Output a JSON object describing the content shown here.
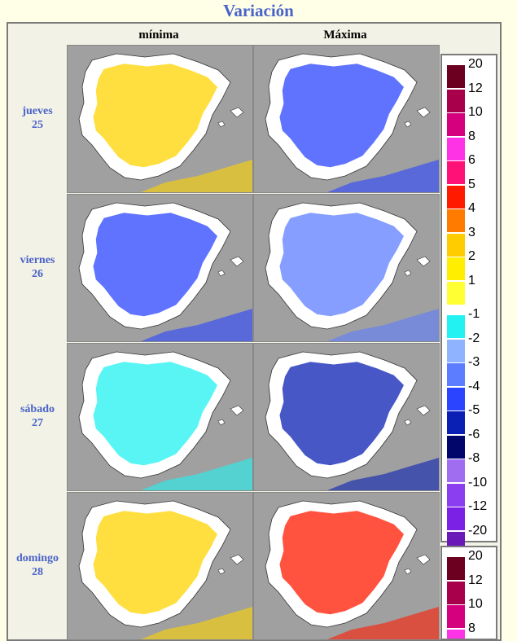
{
  "title": "Variación",
  "columns": [
    "mínima",
    "Máxima"
  ],
  "rows": [
    {
      "day": "jueves",
      "date": "25"
    },
    {
      "day": "viernes",
      "date": "26"
    },
    {
      "day": "sábado",
      "date": "27"
    },
    {
      "day": "domingo",
      "date": "28"
    }
  ],
  "legend": {
    "positive": [
      {
        "label": "20",
        "color": "#6b0020"
      },
      {
        "label": "12",
        "color": "#a8004a"
      },
      {
        "label": "10",
        "color": "#d4007e"
      },
      {
        "label": "8",
        "color": "#ff33e6"
      },
      {
        "label": "6",
        "color": "#ff1177"
      },
      {
        "label": "5",
        "color": "#ff1a00"
      },
      {
        "label": "4",
        "color": "#ff7b00"
      },
      {
        "label": "3",
        "color": "#ffcc00"
      },
      {
        "label": "2",
        "color": "#ffee00"
      },
      {
        "label": "1",
        "color": "#ffff33"
      }
    ],
    "negative": [
      {
        "label": "-1",
        "color": "#22f2f2"
      },
      {
        "label": "-2",
        "color": "#8fb3ff"
      },
      {
        "label": "-3",
        "color": "#5c7dff"
      },
      {
        "label": "-4",
        "color": "#2a44ff"
      },
      {
        "label": "-5",
        "color": "#0a1fb3"
      },
      {
        "label": "-6",
        "color": "#02066b"
      },
      {
        "label": "-8",
        "color": "#a06cf0"
      },
      {
        "label": "-10",
        "color": "#8a3ef0"
      },
      {
        "label": "-12",
        "color": "#7b21e6"
      },
      {
        "label": "-20",
        "color": "#6a18b8"
      }
    ]
  },
  "map_fills": {
    "jueves_min": "#ffd400",
    "jueves_max": "#2a44ff",
    "viernes_min": "#2a44ff",
    "viernes_max": "#5c7dff",
    "sabado_min": "#22f2f2",
    "sabado_max": "#0a1fb3",
    "domingo_min": "#ffd400",
    "domingo_max": "#ff1a00"
  }
}
